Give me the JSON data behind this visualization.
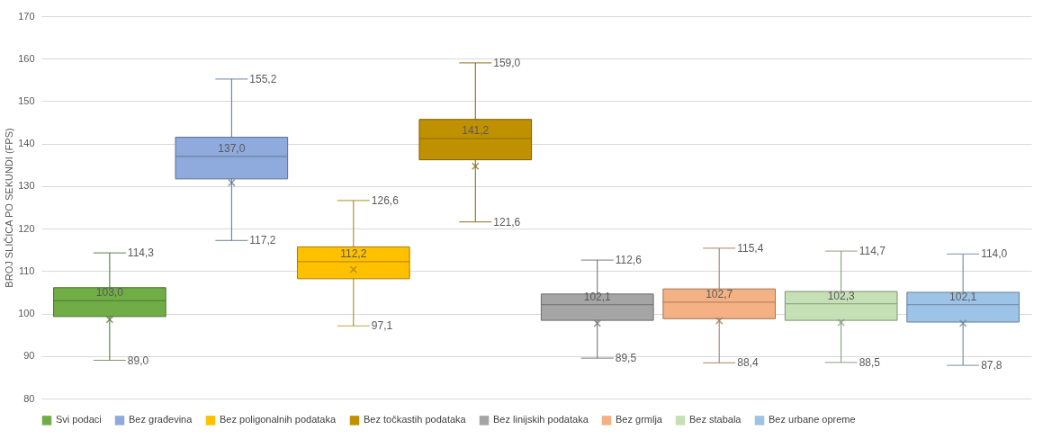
{
  "chart_data": {
    "type": "box",
    "ylabel": "BROJ SLIČICA PO SEKUNDI (FPS)",
    "categories": [
      null
    ],
    "ylim": [
      80,
      170
    ],
    "yticks": [
      80,
      90,
      100,
      110,
      120,
      130,
      140,
      150,
      160,
      170
    ],
    "grid": "y",
    "legend": "bottom",
    "series": [
      {
        "name": "Svi podaci",
        "color": "#70ad47",
        "boxes": [
          {
            "low": 89.0,
            "q1": 99.3,
            "median": 103.0,
            "q3": 106.1,
            "high": 114.3,
            "mean": 98.6
          }
        ]
      },
      {
        "name": "Bez građevina",
        "color": "#8faadc",
        "boxes": [
          {
            "low": 117.2,
            "q1": 131.7,
            "median": 137.0,
            "q3": 141.5,
            "high": 155.2,
            "mean": 130.8
          }
        ]
      },
      {
        "name": "Bez poligonalnih podataka",
        "color": "#ffc000",
        "boxes": [
          {
            "low": 97.1,
            "q1": 108.2,
            "median": 112.2,
            "q3": 115.7,
            "high": 126.6,
            "mean": 110.4
          }
        ]
      },
      {
        "name": "Bez točkastih podataka",
        "color": "#bf9000",
        "boxes": [
          {
            "low": 121.6,
            "q1": 136.2,
            "median": 141.2,
            "q3": 145.7,
            "high": 159.0,
            "mean": 134.7
          }
        ]
      },
      {
        "name": "Bez linijskih podataka",
        "color": "#a5a5a5",
        "boxes": [
          {
            "low": 89.5,
            "q1": 98.4,
            "median": 102.1,
            "q3": 104.6,
            "high": 112.6,
            "mean": 97.7
          }
        ]
      },
      {
        "name": "Bez grmlja",
        "color": "#f4b183",
        "boxes": [
          {
            "low": 88.4,
            "q1": 98.8,
            "median": 102.7,
            "q3": 105.8,
            "high": 115.4,
            "mean": 98.3
          }
        ]
      },
      {
        "name": "Bez stabala",
        "color": "#c5e0b4",
        "boxes": [
          {
            "low": 88.5,
            "q1": 98.4,
            "median": 102.3,
            "q3": 105.2,
            "high": 114.7,
            "mean": 97.9
          }
        ]
      },
      {
        "name": "Bez urbane opreme",
        "color": "#9dc3e6",
        "boxes": [
          {
            "low": 87.8,
            "q1": 98.0,
            "median": 102.1,
            "q3": 105.0,
            "high": 114.0,
            "mean": 97.7
          }
        ]
      }
    ],
    "annotations": [
      "114,3",
      "103,0",
      "89,0",
      "155,2",
      "137,0",
      "117,2",
      "126,6",
      "112,2",
      "97,1",
      "159,0",
      "141,2",
      "121,6",
      "112,6",
      "102,1",
      "89,5",
      "115,4",
      "102,7",
      "88,4",
      "114,7",
      "102,3",
      "88,5",
      "114,0",
      "102,1",
      "87,8"
    ]
  }
}
